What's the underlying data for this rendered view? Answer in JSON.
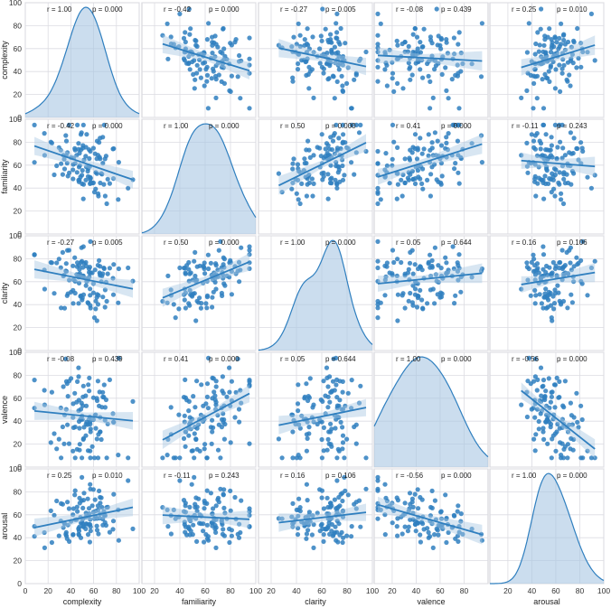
{
  "chart_data": {
    "type": "scatter",
    "variables": [
      "complexity",
      "familiarity",
      "clarity",
      "valence",
      "arousal"
    ],
    "xlabels": [
      "complexity",
      "familiarity",
      "clarity",
      "valence",
      "arousal"
    ],
    "ylabels": [
      "complexity",
      "familiarity",
      "clarity",
      "valence",
      "arousal"
    ],
    "axis_ticks": [
      [
        0,
        20,
        40,
        60,
        80,
        100
      ],
      [
        20,
        40,
        60,
        80,
        100
      ],
      [
        20,
        40,
        60,
        80,
        100
      ],
      [
        20,
        40,
        60,
        80
      ],
      [
        20,
        40,
        60,
        80,
        100
      ]
    ],
    "xlims": [
      [
        0,
        100
      ],
      [
        10,
        100
      ],
      [
        10,
        100
      ],
      [
        5,
        100
      ],
      [
        5,
        100
      ]
    ],
    "ylims": [
      [
        0,
        100
      ],
      [
        0,
        100
      ],
      [
        0,
        100
      ],
      [
        0,
        100
      ],
      [
        0,
        100
      ]
    ],
    "y_ticks": [
      0,
      20,
      40,
      60,
      80,
      100
    ],
    "stats": [
      [
        {
          "r": "r = 1.00",
          "p": "p = 0.000"
        },
        {
          "r": "r = -0.42",
          "p": "p = 0.000"
        },
        {
          "r": "r = -0.27",
          "p": "p = 0.005"
        },
        {
          "r": "r = -0.08",
          "p": "p = 0.439"
        },
        {
          "r": "r = 0.25",
          "p": "p = 0.010"
        }
      ],
      [
        {
          "r": "r = -0.42",
          "p": "p = 0.000"
        },
        {
          "r": "r = 1.00",
          "p": "p = 0.000"
        },
        {
          "r": "r = 0.50",
          "p": "p = 0.000"
        },
        {
          "r": "r = 0.41",
          "p": "p = 0.000"
        },
        {
          "r": "r = -0.11",
          "p": "p = 0.243"
        }
      ],
      [
        {
          "r": "r = -0.27",
          "p": "p = 0.005"
        },
        {
          "r": "r = 0.50",
          "p": "p = 0.000"
        },
        {
          "r": "r = 1.00",
          "p": "p = 0.000"
        },
        {
          "r": "r = 0.05",
          "p": "p = 0.644"
        },
        {
          "r": "r = 0.16",
          "p": "p = 0.106"
        }
      ],
      [
        {
          "r": "r = -0.08",
          "p": "p = 0.439"
        },
        {
          "r": "r = 0.41",
          "p": "p = 0.000"
        },
        {
          "r": "r = 0.05",
          "p": "p = 0.644"
        },
        {
          "r": "r = 1.00",
          "p": "p = 0.000"
        },
        {
          "r": "r = -0.56",
          "p": "p = 0.000"
        }
      ],
      [
        {
          "r": "r = 0.25",
          "p": "p = 0.010"
        },
        {
          "r": "r = -0.11",
          "p": "p = 0.243"
        },
        {
          "r": "r = 0.16",
          "p": "p = 0.106"
        },
        {
          "r": "r = -0.56",
          "p": "p = 0.000"
        },
        {
          "r": "r = 1.00",
          "p": "p = 0.000"
        }
      ]
    ],
    "distributions": [
      {
        "mean": 52,
        "sd": 17
      },
      {
        "mean": 62,
        "sd": 17
      },
      {
        "mean": 62,
        "sd": 14
      },
      {
        "mean": 45,
        "sd": 24
      },
      {
        "mean": 57,
        "sd": 14
      }
    ],
    "n_points": 110,
    "grid": true,
    "color": "#2f7fbf",
    "fill_color": "#a9c7e3"
  }
}
